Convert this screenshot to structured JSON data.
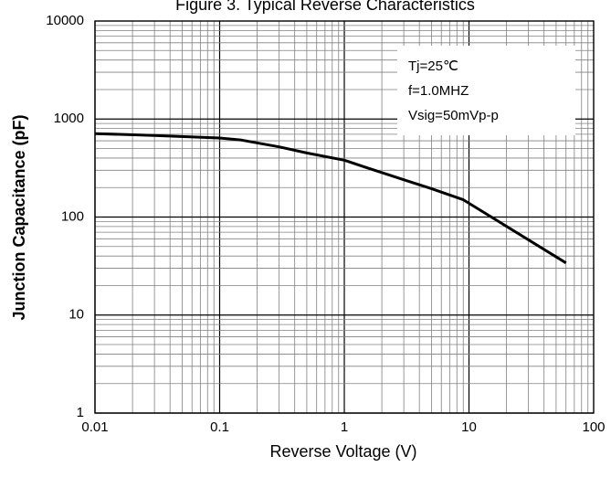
{
  "chart_data": {
    "type": "line",
    "title": "Figure 3. Typical Reverse Characteristics",
    "xlabel": "Reverse Voltage (V)",
    "ylabel": "Junction Capacitance (pF)",
    "x_scale": "log",
    "y_scale": "log",
    "xlim": [
      0.01,
      100
    ],
    "ylim": [
      1,
      10000
    ],
    "x_ticks": [
      "0.01",
      "0.1",
      "1",
      "10",
      "100"
    ],
    "y_ticks": [
      "1",
      "10",
      "100",
      "1000",
      "10000"
    ],
    "grid": true,
    "annotations": [
      "Tj=25℃",
      "f=1.0MHZ",
      "Vsig=50mVp-p"
    ],
    "series": [
      {
        "x": [
          0.01,
          0.03,
          0.1,
          0.15,
          0.3,
          0.5,
          1,
          1.5,
          3,
          5,
          9,
          60
        ],
        "y": [
          710,
          680,
          640,
          610,
          520,
          450,
          380,
          320,
          240,
          195,
          150,
          34
        ]
      }
    ]
  },
  "colors": {
    "line": "#000000",
    "grid": "#808080",
    "background": "#ffffff"
  }
}
